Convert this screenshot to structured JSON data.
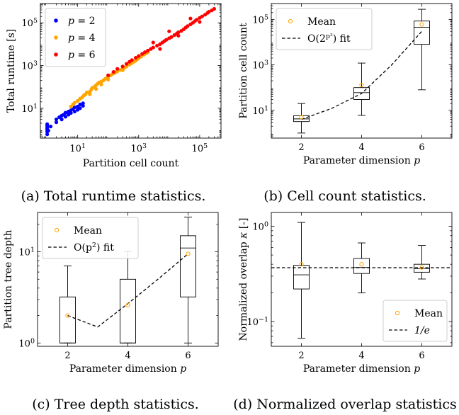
{
  "captions": {
    "a": "(a) Total runtime statistics.",
    "b": "(b) Cell count statistics.",
    "c": "(c) Tree depth statistics.",
    "d": "(d) Normalized overlap statistics"
  },
  "chart_data": [
    {
      "id": "a",
      "type": "scatter",
      "xlabel": "Partition cell count",
      "ylabel": "Total runtime [s]",
      "xscale": "log",
      "yscale": "log",
      "xlim": [
        0.6,
        500000
      ],
      "ylim": [
        0.4,
        800000
      ],
      "xticks": [
        {
          "v": 10,
          "base": "10",
          "exp": "1"
        },
        {
          "v": 1000,
          "base": "10",
          "exp": "3"
        },
        {
          "v": 100000,
          "base": "10",
          "exp": "5"
        }
      ],
      "yticks": [
        {
          "v": 10,
          "base": "10",
          "exp": "1"
        },
        {
          "v": 1000,
          "base": "10",
          "exp": "3"
        },
        {
          "v": 100000,
          "base": "10",
          "exp": "5"
        }
      ],
      "legend_position": "top-left",
      "series": [
        {
          "name": "p = 2",
          "symbol": "p",
          "value_text": "2",
          "color": "#0000ff",
          "points": [
            [
              1,
              0.6
            ],
            [
              1,
              0.8
            ],
            [
              1,
              1.0
            ],
            [
              1,
              1.2
            ],
            [
              1,
              1.5
            ],
            [
              1,
              1.8
            ],
            [
              1.1,
              0.9
            ],
            [
              1.3,
              1.4
            ],
            [
              2,
              2.2
            ],
            [
              2,
              3.0
            ],
            [
              2.5,
              3.8
            ],
            [
              3,
              4.5
            ],
            [
              3,
              3.0
            ],
            [
              3.5,
              5.0
            ],
            [
              4,
              6.2
            ],
            [
              4,
              4.0
            ],
            [
              5,
              7.0
            ],
            [
              5,
              5.0
            ],
            [
              6,
              8.0
            ],
            [
              6,
              6.0
            ],
            [
              7,
              9.0
            ],
            [
              8,
              11
            ],
            [
              8,
              7.0
            ],
            [
              10,
              12
            ],
            [
              10,
              8.5
            ],
            [
              12,
              15
            ],
            [
              12,
              10
            ],
            [
              15,
              17
            ],
            [
              15,
              13
            ]
          ]
        },
        {
          "name": "p = 4",
          "symbol": "p",
          "value_text": "4",
          "color": "#ffa500",
          "points": [
            [
              6,
              12
            ],
            [
              7,
              15
            ],
            [
              8,
              18
            ],
            [
              10,
              22
            ],
            [
              12,
              28
            ],
            [
              14,
              32
            ],
            [
              16,
              40
            ],
            [
              18,
              45
            ],
            [
              20,
              55
            ],
            [
              25,
              60
            ],
            [
              28,
              75
            ],
            [
              30,
              90
            ],
            [
              35,
              100
            ],
            [
              40,
              120
            ],
            [
              45,
              140
            ],
            [
              50,
              160
            ],
            [
              60,
              180
            ],
            [
              70,
              200
            ],
            [
              80,
              240
            ],
            [
              90,
              260
            ],
            [
              100,
              300
            ],
            [
              120,
              350
            ],
            [
              140,
              400
            ],
            [
              160,
              450
            ],
            [
              180,
              500
            ],
            [
              200,
              540
            ],
            [
              250,
              620
            ],
            [
              300,
              700
            ],
            [
              350,
              800
            ],
            [
              400,
              900
            ],
            [
              500,
              1100
            ],
            [
              600,
              1300
            ],
            [
              700,
              1500
            ],
            [
              800,
              1700
            ],
            [
              900,
              2000
            ],
            [
              1000,
              2200
            ],
            [
              1200,
              2600
            ],
            [
              1500,
              3200
            ],
            [
              1800,
              3800
            ],
            [
              2000,
              4200
            ],
            [
              40,
              80
            ],
            [
              60,
              130
            ],
            [
              25,
              45
            ],
            [
              100,
              220
            ],
            [
              300,
              600
            ]
          ]
        },
        {
          "name": "p = 6",
          "symbol": "p",
          "value_text": "6",
          "color": "#ff0000",
          "points": [
            [
              100,
              350
            ],
            [
              150,
              500
            ],
            [
              200,
              700
            ],
            [
              300,
              900
            ],
            [
              400,
              1200
            ],
            [
              500,
              1500
            ],
            [
              600,
              1800
            ],
            [
              800,
              2300
            ],
            [
              1000,
              2800
            ],
            [
              1300,
              3500
            ],
            [
              1600,
              4200
            ],
            [
              2000,
              5000
            ],
            [
              2500,
              6000
            ],
            [
              3000,
              7000
            ],
            [
              4000,
              8500
            ],
            [
              5000,
              10000
            ],
            [
              6000,
              12000
            ],
            [
              7000,
              14000
            ],
            [
              8000,
              16000
            ],
            [
              10000,
              19000
            ],
            [
              12000,
              22000
            ],
            [
              15000,
              27000
            ],
            [
              18000,
              32000
            ],
            [
              20000,
              36000
            ],
            [
              25000,
              42000
            ],
            [
              30000,
              50000
            ],
            [
              35000,
              60000
            ],
            [
              40000,
              70000
            ],
            [
              50000,
              85000
            ],
            [
              60000,
              100000
            ],
            [
              70000,
              120000
            ],
            [
              80000,
              140000
            ],
            [
              100000,
              170000
            ],
            [
              120000,
              200000
            ],
            [
              150000,
              240000
            ],
            [
              180000,
              290000
            ],
            [
              200000,
              330000
            ],
            [
              250000,
              380000
            ],
            [
              300000,
              450000
            ],
            [
              3000,
              12000
            ],
            [
              10000,
              40000
            ],
            [
              50000,
              160000
            ],
            [
              5000,
              6000
            ],
            [
              20000,
              25000
            ],
            [
              100000,
              110000
            ]
          ]
        }
      ]
    },
    {
      "id": "b",
      "type": "box",
      "xlabel": "Parameter dimension",
      "xlabel_symbol": "p",
      "ylabel": "Partition cell count",
      "yscale": "log",
      "ylim": [
        0.6,
        500000
      ],
      "categories": [
        2,
        4,
        6
      ],
      "yticks": [
        {
          "v": 10,
          "base": "10",
          "exp": "1"
        },
        {
          "v": 1000,
          "base": "10",
          "exp": "3"
        },
        {
          "v": 100000,
          "base": "10",
          "exp": "5"
        }
      ],
      "boxes": [
        {
          "whislo": 1,
          "q1": 3.2,
          "med": 4.2,
          "q3": 5.8,
          "whishi": 20,
          "mean": 5
        },
        {
          "whislo": 6,
          "q1": 30,
          "med": 60,
          "q3": 100,
          "whishi": 1200,
          "mean": 130
        },
        {
          "whislo": 80,
          "q1": 8000,
          "med": 45000,
          "q3": 85000,
          "whishi": 280000,
          "mean": 60000
        }
      ],
      "fit": {
        "x": [
          2,
          3,
          4,
          5,
          6
        ],
        "y": [
          4,
          12,
          55,
          1000,
          30000
        ]
      },
      "legend": [
        {
          "kind": "mean",
          "label": "Mean"
        },
        {
          "kind": "fit",
          "prefix": "O(2",
          "sup": "p²",
          "suffix": ") fit"
        }
      ],
      "legend_position": "top-left",
      "mean_color": "#ffa500"
    },
    {
      "id": "c",
      "type": "box",
      "xlabel": "Parameter dimension",
      "xlabel_symbol": "p",
      "ylabel": "Partition tree depth",
      "yscale": "log",
      "ylim": [
        0.92,
        27
      ],
      "categories": [
        2,
        4,
        6
      ],
      "yticks": [
        {
          "v": 1,
          "base": "10",
          "exp": "0"
        },
        {
          "v": 10,
          "base": "10",
          "exp": "1"
        }
      ],
      "boxes": [
        {
          "whislo": 1,
          "q1": 1,
          "med": 1,
          "q3": 3.2,
          "whishi": 7,
          "mean": 2
        },
        {
          "whislo": 1,
          "q1": 1,
          "med": 1,
          "q3": 5,
          "whishi": 10,
          "mean": 2.6
        },
        {
          "whislo": 1,
          "q1": 3.2,
          "med": 11,
          "q3": 15,
          "whishi": 24,
          "mean": 9.5
        }
      ],
      "fit": {
        "x": [
          2,
          3,
          4,
          5,
          6
        ],
        "y": [
          2,
          1.5,
          2.7,
          5,
          9.5
        ]
      },
      "legend": [
        {
          "kind": "mean",
          "label": "Mean"
        },
        {
          "kind": "fit",
          "prefix": "O(p",
          "sup": "2",
          "suffix": ") fit"
        }
      ],
      "legend_position": "top-left",
      "mean_color": "#ffa500"
    },
    {
      "id": "d",
      "type": "box",
      "xlabel": "Parameter dimension",
      "xlabel_symbol": "p",
      "ylabel": "Normalized overlap",
      "ylabel_symbol": "κ",
      "ylabel_unit": "[-]",
      "yscale": "log",
      "ylim": [
        0.055,
        1.4
      ],
      "categories": [
        2,
        4,
        6
      ],
      "yticks": [
        {
          "v": 0.1,
          "base": "10",
          "exp": "−1"
        },
        {
          "v": 1,
          "base": "10",
          "exp": "0"
        }
      ],
      "boxes": [
        {
          "whislo": 0.067,
          "q1": 0.22,
          "med": 0.31,
          "q3": 0.39,
          "whishi": 1.1,
          "mean": 0.4
        },
        {
          "whislo": 0.2,
          "q1": 0.32,
          "med": 0.37,
          "q3": 0.46,
          "whishi": 0.67,
          "mean": 0.4
        },
        {
          "whislo": 0.28,
          "q1": 0.33,
          "med": 0.36,
          "q3": 0.4,
          "whishi": 0.63,
          "mean": 0.37
        }
      ],
      "hline": 0.3679,
      "legend": [
        {
          "kind": "mean",
          "label": "Mean"
        },
        {
          "kind": "fit",
          "prefix": "1/e",
          "sup": "",
          "suffix": ""
        }
      ],
      "legend_position": "bottom-right",
      "mean_color": "#ffa500"
    }
  ]
}
